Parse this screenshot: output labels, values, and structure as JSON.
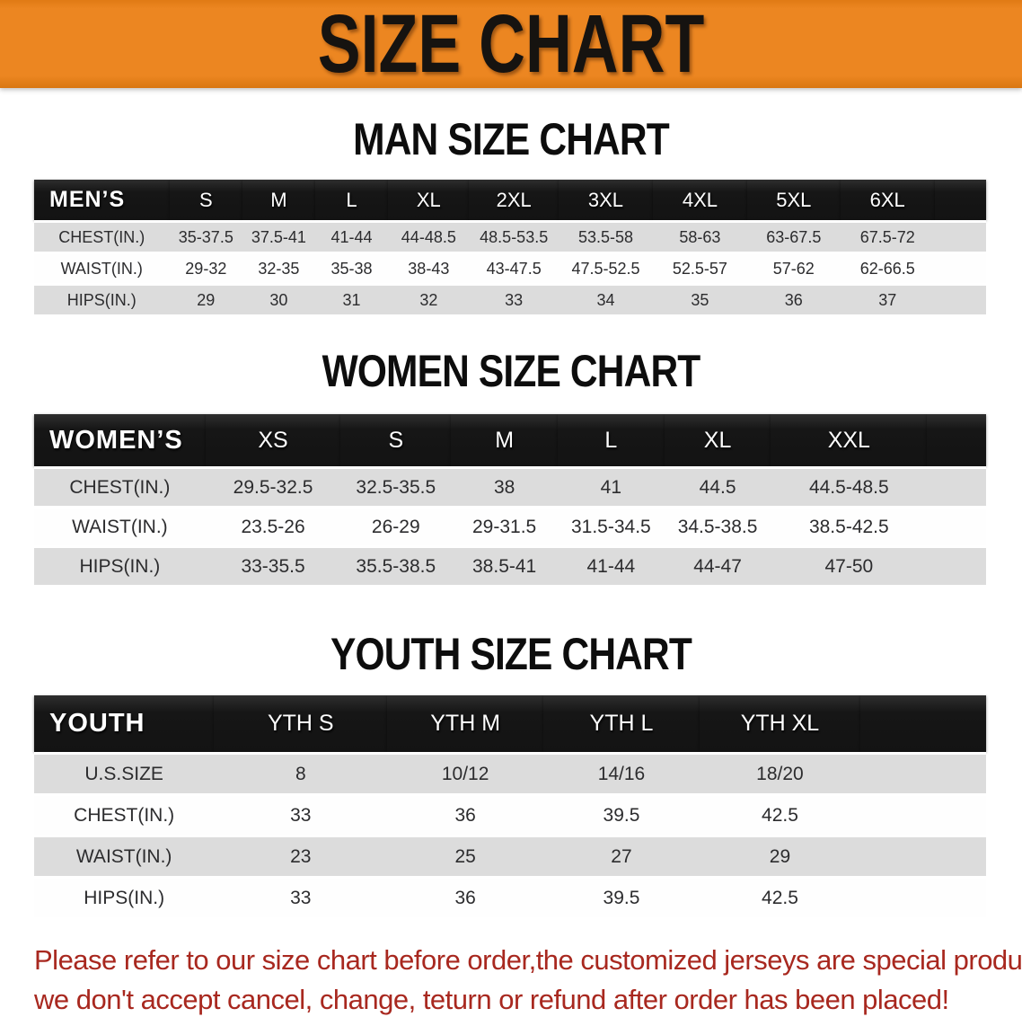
{
  "banner": {
    "title": "SIZE CHART"
  },
  "sections": [
    {
      "title": "MAN SIZE CHART",
      "table": {
        "header_label": "MEN’S",
        "sizes": [
          "S",
          "M",
          "L",
          "XL",
          "2XL",
          "3XL",
          "4XL",
          "5XL",
          "6XL"
        ],
        "rows": [
          {
            "label": "CHEST(IN.)",
            "values": [
              "35-37.5",
              "37.5-41",
              "41-44",
              "44-48.5",
              "48.5-53.5",
              "53.5-58",
              "58-63",
              "63-67.5",
              "67.5-72"
            ]
          },
          {
            "label": "WAIST(IN.)",
            "values": [
              "29-32",
              "32-35",
              "35-38",
              "38-43",
              "43-47.5",
              "47.5-52.5",
              "52.5-57",
              "57-62",
              "62-66.5"
            ]
          },
          {
            "label": "HIPS(IN.)",
            "values": [
              "29",
              "30",
              "31",
              "32",
              "33",
              "34",
              "35",
              "36",
              "37"
            ]
          }
        ]
      }
    },
    {
      "title": "WOMEN SIZE CHART",
      "table": {
        "header_label": "WOMEN’S",
        "sizes": [
          "XS",
          "S",
          "M",
          "L",
          "XL",
          "XXL"
        ],
        "rows": [
          {
            "label": "CHEST(IN.)",
            "values": [
              "29.5-32.5",
              "32.5-35.5",
              "38",
              "41",
              "44.5",
              "44.5-48.5"
            ]
          },
          {
            "label": "WAIST(IN.)",
            "values": [
              "23.5-26",
              "26-29",
              "29-31.5",
              "31.5-34.5",
              "34.5-38.5",
              "38.5-42.5"
            ]
          },
          {
            "label": "HIPS(IN.)",
            "values": [
              "33-35.5",
              "35.5-38.5",
              "38.5-41",
              "41-44",
              "44-47",
              "47-50"
            ]
          }
        ]
      }
    },
    {
      "title": "YOUTH SIZE CHART",
      "table": {
        "header_label": "YOUTH",
        "sizes": [
          "YTH S",
          "YTH M",
          "YTH L",
          "YTH XL"
        ],
        "rows": [
          {
            "label": "U.S.SIZE",
            "values": [
              "8",
              "10/12",
              "14/16",
              "18/20"
            ]
          },
          {
            "label": "CHEST(IN.)",
            "values": [
              "33",
              "36",
              "39.5",
              "42.5"
            ]
          },
          {
            "label": "WAIST(IN.)",
            "values": [
              "23",
              "25",
              "27",
              "29"
            ]
          },
          {
            "label": "HIPS(IN.)",
            "values": [
              "33",
              "36",
              "39.5",
              "42.5"
            ]
          }
        ]
      }
    }
  ],
  "footer": {
    "line1": "Please refer to our size chart before order,the customized jerseys are special products,",
    "line2": "we don't accept cancel, change, teturn or refund after order has been placed!"
  },
  "colors": {
    "banner_bg": "#ec8621",
    "banner_text": "#161310",
    "table_header_bg": "#131313",
    "table_header_text": "#ffffff",
    "row_stripe": "#dcdcdc",
    "row_plain": "#fefefe",
    "data_text": "#2c2c2e",
    "title_text": "#0d0d0d",
    "footer_text": "#a8281f"
  }
}
